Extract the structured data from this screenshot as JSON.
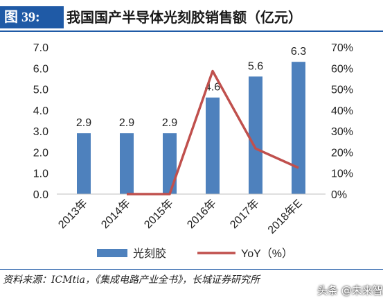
{
  "figure": {
    "label": "图 39:",
    "title": "我国国产半导体光刻胶销售额（亿元）"
  },
  "source": "资料来源：ICMtia，《集成电路产业全书》，长城证券研究所",
  "watermark": "头条 @未来智库",
  "colors": {
    "bar": "#4e81bd",
    "line": "#c0504d",
    "accent": "#1f5aa6"
  },
  "chart_data": {
    "type": "bar",
    "categories": [
      "2013年",
      "2014年",
      "2015年",
      "2016年",
      "2017年",
      "2018年E"
    ],
    "series": [
      {
        "name": "光刻胶",
        "type": "bar",
        "axis": "left",
        "values": [
          2.9,
          2.9,
          2.9,
          4.6,
          5.6,
          6.3
        ]
      },
      {
        "name": "YoY（%）",
        "type": "line",
        "axis": "right",
        "values": [
          null,
          0,
          0,
          58.6,
          21.7,
          12.5
        ]
      }
    ],
    "data_labels": [
      "2.9",
      "2.9",
      "2.9",
      "4.6",
      "5.6",
      "6.3"
    ],
    "y_left": {
      "min": 0,
      "max": 7,
      "ticks": [
        "0.0",
        "1.0",
        "2.0",
        "3.0",
        "4.0",
        "5.0",
        "6.0",
        "7.0"
      ]
    },
    "y_right": {
      "min": 0,
      "max": 70,
      "ticks": [
        "0%",
        "10%",
        "20%",
        "30%",
        "40%",
        "50%",
        "60%",
        "70%"
      ]
    },
    "grid": false,
    "legend": "bottom"
  }
}
